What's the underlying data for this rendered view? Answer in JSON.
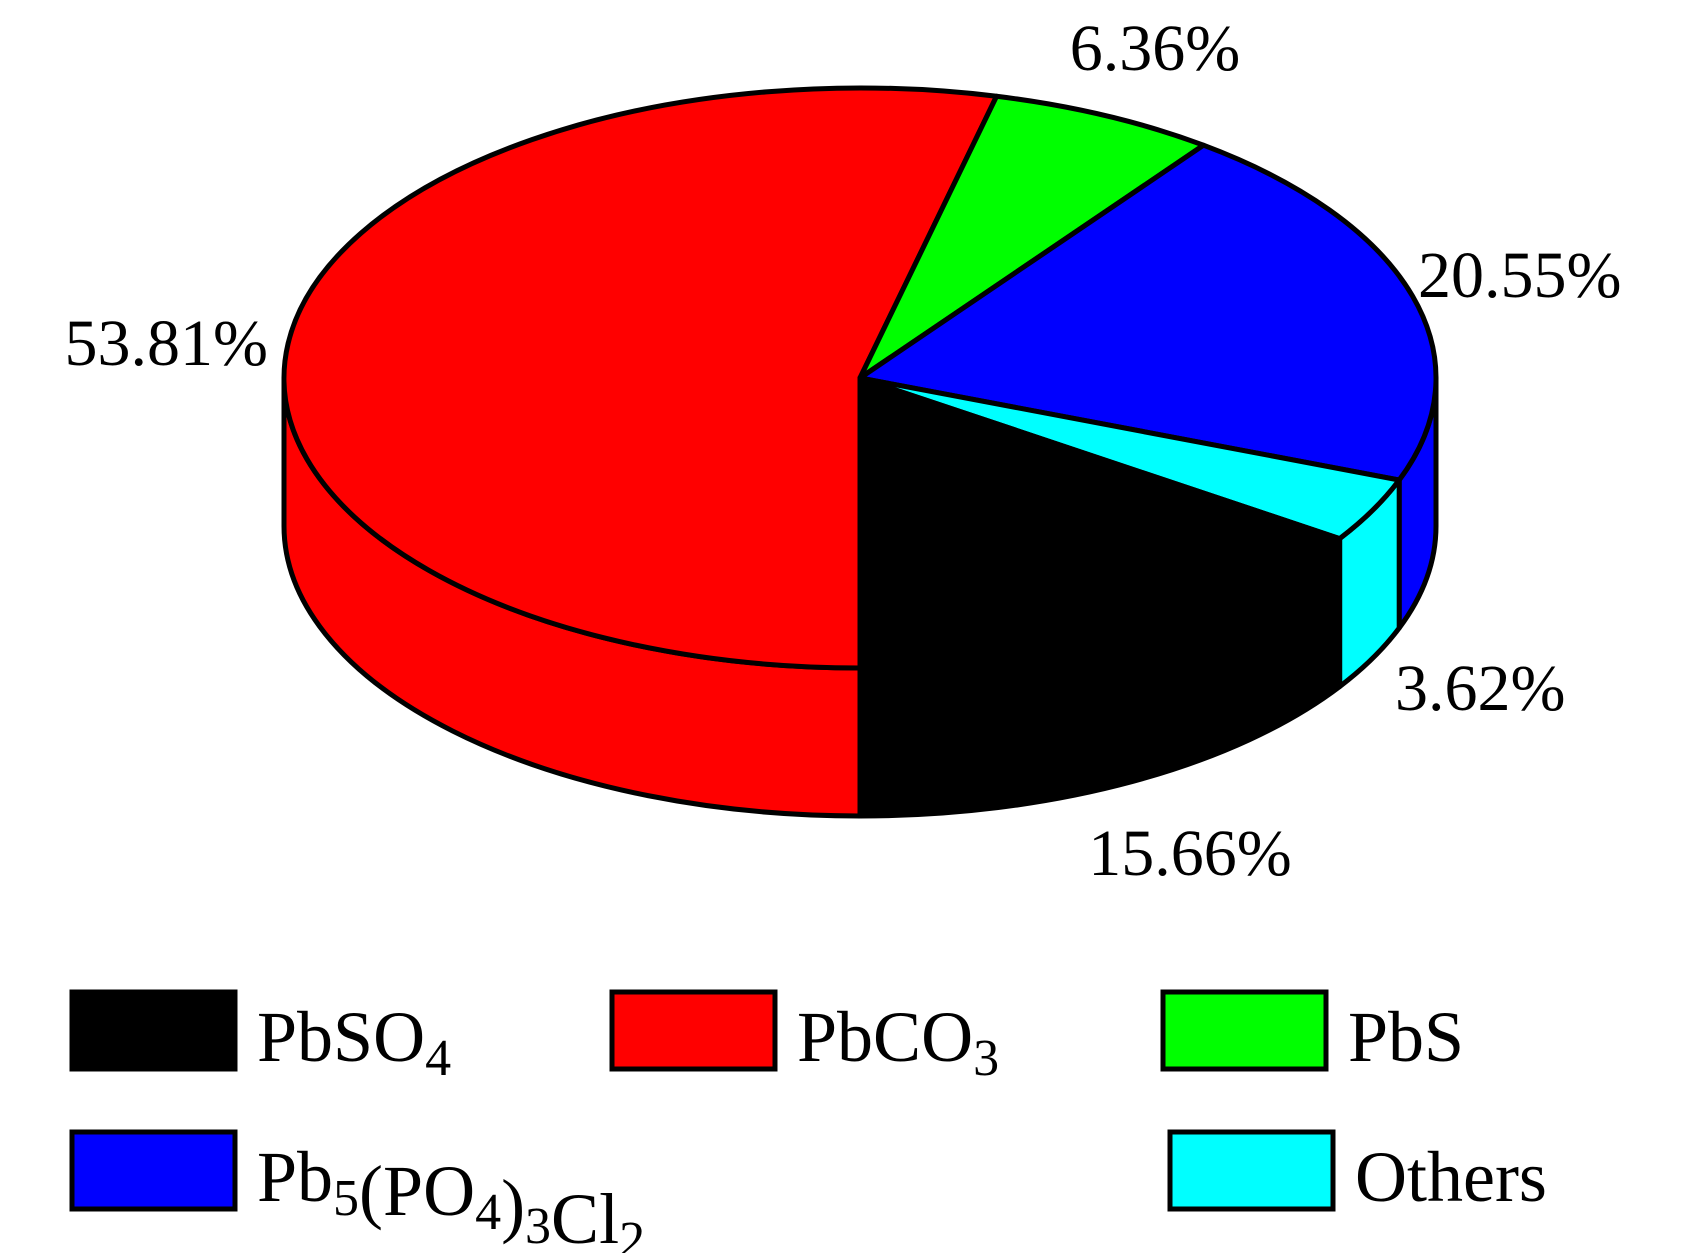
{
  "chart_data": {
    "type": "pie",
    "style": "3d",
    "title": "",
    "slices": [
      {
        "label": "PbSO4",
        "display": {
          "base": "PbSO",
          "parts": [
            {
              "t": "PbSO",
              "sub": false
            },
            {
              "t": "4",
              "sub": true
            }
          ]
        },
        "value": 15.66,
        "value_label": "15.66%",
        "color": "#000000"
      },
      {
        "label": "PbCO3",
        "display": {
          "parts": [
            {
              "t": "PbCO",
              "sub": false
            },
            {
              "t": "3",
              "sub": true
            }
          ]
        },
        "value": 53.81,
        "value_label": "53.81%",
        "color": "#ff0000"
      },
      {
        "label": "PbS",
        "display": {
          "parts": [
            {
              "t": "PbS",
              "sub": false
            }
          ]
        },
        "value": 6.36,
        "value_label": "6.36%",
        "color": "#00ff00"
      },
      {
        "label": "Pb5(PO4)3Cl2",
        "display": {
          "parts": [
            {
              "t": "Pb",
              "sub": false
            },
            {
              "t": "5",
              "sub": true
            },
            {
              "t": "(PO",
              "sub": false
            },
            {
              "t": "4",
              "sub": true
            },
            {
              "t": ")",
              "sub": false
            },
            {
              "t": "3",
              "sub": true
            },
            {
              "t": "Cl",
              "sub": false
            },
            {
              "t": "2",
              "sub": true
            }
          ]
        },
        "value": 20.55,
        "value_label": "20.55%",
        "color": "#0000ff"
      },
      {
        "label": "Others",
        "display": {
          "parts": [
            {
              "t": "Others",
              "sub": false
            }
          ]
        },
        "value": 3.62,
        "value_label": "3.62%",
        "color": "#00ffff"
      }
    ],
    "legend_position": "bottom"
  }
}
